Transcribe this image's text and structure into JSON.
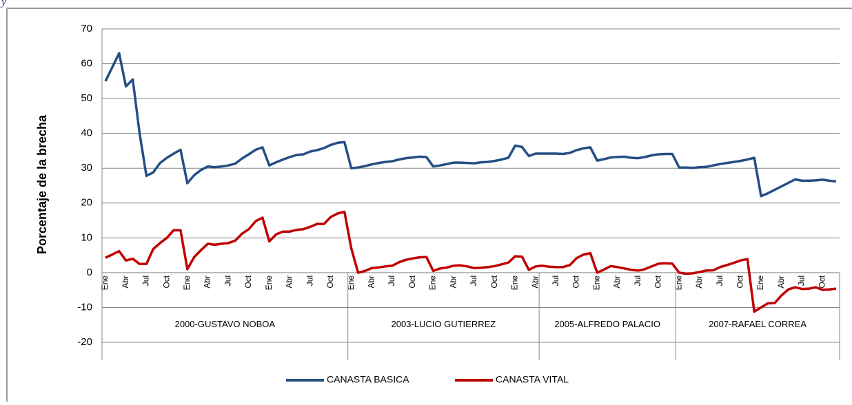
{
  "fragment": "y",
  "chart_data": {
    "type": "line",
    "y_label": "Porcentaje de la brecha",
    "categories": [
      "Ene",
      null,
      null,
      "Abr",
      null,
      null,
      "Jul",
      null,
      null,
      "Oct",
      null,
      null,
      "Ene",
      null,
      null,
      "Abr",
      null,
      null,
      "Jul",
      null,
      null,
      "Oct",
      null,
      null,
      "Ene",
      null,
      null,
      "Abr",
      null,
      null,
      "Jul",
      null,
      null,
      "Oct",
      null,
      null,
      "Ene",
      null,
      null,
      "Abr",
      null,
      null,
      "Jul",
      null,
      null,
      "Oct",
      null,
      null,
      "Ene",
      null,
      null,
      "Abr",
      null,
      null,
      "Jul",
      null,
      null,
      "Oct",
      null,
      null,
      "Ene",
      null,
      null,
      "Abr",
      null,
      null,
      "Jul",
      null,
      null,
      "Oct",
      null,
      null,
      "Ene",
      null,
      null,
      "Abr",
      null,
      null,
      "Jul",
      null,
      null,
      "Oct",
      null,
      null,
      "Ene",
      null,
      null,
      "Abr",
      null,
      null,
      "Jul",
      null,
      null,
      "Oct",
      null,
      null,
      "Ene",
      null,
      null,
      "Abr",
      null,
      null,
      "Jul",
      null,
      null,
      "Oct",
      null,
      null
    ],
    "groups": [
      {
        "name": "2000-GUSTAVO NOBOA",
        "months": 36
      },
      {
        "name": "2003-LUCIO GUTIERREZ",
        "months": 28
      },
      {
        "name": "2005-ALFREDO PALACIO",
        "months": 20
      },
      {
        "name": "2007-RAFAEL CORREA",
        "months": 24
      }
    ],
    "series": [
      {
        "name": "CANASTA BASICA",
        "color": "#254e84",
        "values": [
          55,
          59,
          63,
          53.5,
          55.5,
          40,
          27.8,
          28.8,
          31.5,
          33,
          34.2,
          35.3,
          25.7,
          28,
          29.5,
          30.5,
          30.3,
          30.5,
          30.8,
          31.3,
          32.8,
          34,
          35.3,
          36,
          30.8,
          31.7,
          32.5,
          33.2,
          33.8,
          34,
          34.8,
          35.2,
          35.8,
          36.7,
          37.3,
          37.5,
          30,
          30.2,
          30.6,
          31.1,
          31.5,
          31.8,
          32,
          32.5,
          32.9,
          33.1,
          33.3,
          33.2,
          30.5,
          30.8,
          31.2,
          31.6,
          31.6,
          31.5,
          31.4,
          31.7,
          31.8,
          32.1,
          32.5,
          33,
          36.5,
          36.1,
          33.5,
          34.2,
          34.2,
          34.2,
          34.2,
          34.1,
          34.4,
          35.2,
          35.7,
          36,
          32.2,
          32.6,
          33.1,
          33.2,
          33.3,
          33,
          32.9,
          33.2,
          33.7,
          34,
          34.1,
          34.1,
          30.2,
          30.2,
          30.1,
          30.3,
          30.4,
          30.8,
          31.2,
          31.5,
          31.8,
          32.1,
          32.5,
          33,
          22,
          22.8,
          23.8,
          24.8,
          25.8,
          26.8,
          26.4,
          26.4,
          26.5,
          26.7,
          26.4,
          26.2
        ]
      },
      {
        "name": "CANASTA VITAL",
        "color": "#c00000",
        "values": [
          4.3,
          5.2,
          6.2,
          3.5,
          4,
          2.5,
          2.5,
          6.8,
          8.5,
          10,
          12.2,
          12.2,
          1,
          4.5,
          6.5,
          8.3,
          8,
          8.3,
          8.5,
          9.2,
          11.2,
          12.5,
          14.8,
          15.8,
          9,
          11,
          11.8,
          11.8,
          12.3,
          12.5,
          13.2,
          14,
          14,
          16,
          17,
          17.5,
          7,
          0,
          0.5,
          1.3,
          1.5,
          1.8,
          2,
          3,
          3.7,
          4.1,
          4.4,
          4.5,
          0.5,
          1.2,
          1.5,
          2,
          2.1,
          1.8,
          1.3,
          1.4,
          1.6,
          1.9,
          2.4,
          2.9,
          4.7,
          4.6,
          0.8,
          1.8,
          2,
          1.7,
          1.6,
          1.6,
          2.2,
          4.2,
          5.2,
          5.6,
          0,
          0.9,
          1.9,
          1.6,
          1.2,
          0.8,
          0.6,
          1,
          1.8,
          2.6,
          2.7,
          2.6,
          0,
          -0.3,
          -0.2,
          0.2,
          0.6,
          0.7,
          1.6,
          2.2,
          2.8,
          3.5,
          3.9,
          -11.2,
          -10,
          -8.8,
          -8.7,
          -6.5,
          -4.8,
          -4.2,
          -4.7,
          -4.6,
          -4.2,
          -4.9,
          -4.8,
          -4.6
        ]
      }
    ],
    "ylim": [
      -20,
      70
    ],
    "yticks": [
      -20,
      -10,
      0,
      10,
      20,
      30,
      40,
      50,
      60,
      70
    ],
    "grid": true,
    "legend": "bottom"
  }
}
